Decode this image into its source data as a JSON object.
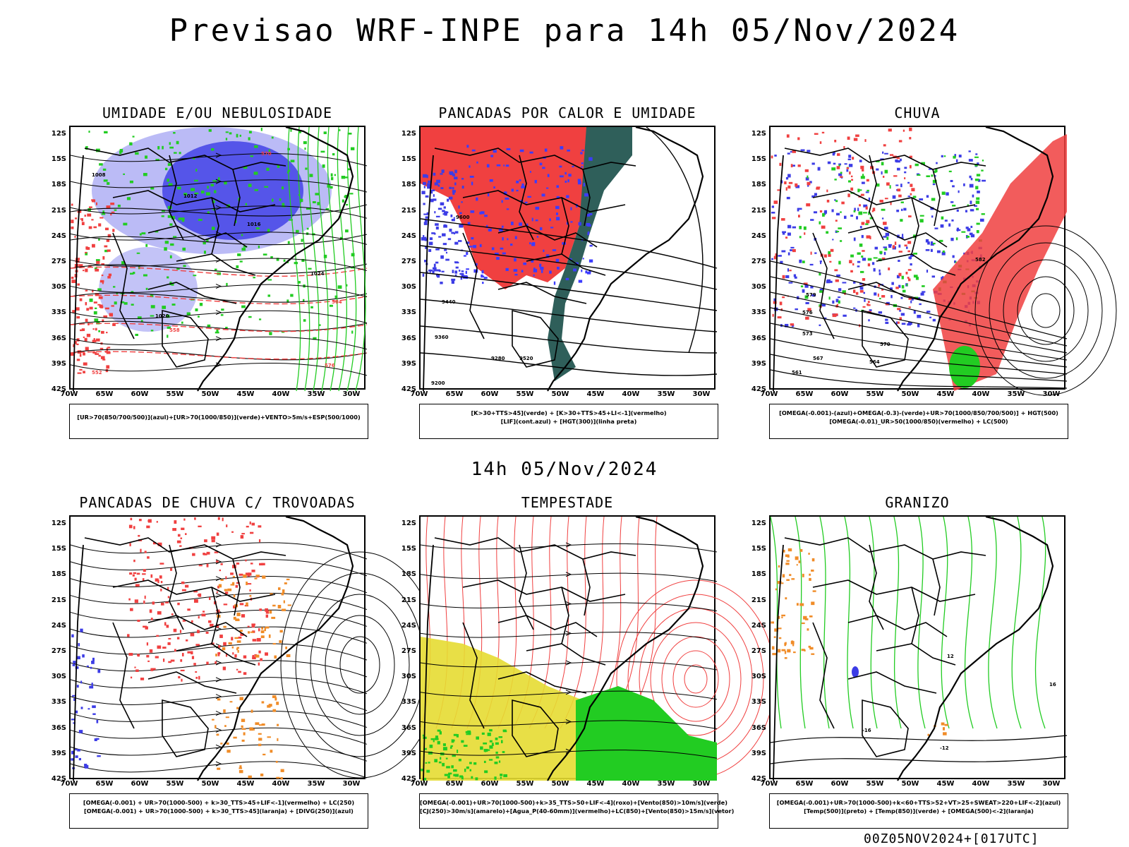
{
  "title": "Previsao WRF-INPE  para 14h 05/Nov/2024",
  "mid_title": "14h 05/Nov/2024",
  "footer": "00Z05NOV2024+[017UTC]",
  "lat_ticks": [
    "12S",
    "15S",
    "18S",
    "21S",
    "24S",
    "27S",
    "30S",
    "33S",
    "36S",
    "39S",
    "42S"
  ],
  "lon_ticks": [
    "70W",
    "65W",
    "60W",
    "55W",
    "50W",
    "45W",
    "40W",
    "35W",
    "30W"
  ],
  "colors": {
    "lightblue": "#b4b4f5",
    "blue": "#3c3ce6",
    "green": "#22cc22",
    "red": "#f04040",
    "darkteal": "#2f5f5a",
    "yellow": "#e6dc32",
    "orange": "#f08c28"
  },
  "panels": [
    {
      "title": "UMIDADE E/OU NEBULOSIDADE",
      "legend": [
        "[UR>70(850/700/500)](azul)+[UR>70(1000/850)](verde)+VENTO>5m/s+ESP(500/1000)"
      ],
      "contour_labels": [
        "1008",
        "1012",
        "1016",
        "1020",
        "1024",
        "576",
        "570",
        "564",
        "558",
        "552"
      ]
    },
    {
      "title": "PANCADAS POR CALOR E UMIDADE",
      "legend": [
        "[K>30+TTS>45](verde)  +  [K>30+TTS>45+LI<-1](vermelho)",
        "[LIF](cont.azul)  +  [HGT(300)](linha preta)"
      ],
      "contour_labels": [
        "9600",
        "9520",
        "9440",
        "9360",
        "9280",
        "9200"
      ]
    },
    {
      "title": "CHUVA",
      "legend": [
        "[OMEGA(-0.001)-(azul)+OMEGA(-0.3)-(verde)+UR>70(1000/850/700/500)]  +  HGT(500)",
        "[OMEGA(-0.01)_UR>50(1000/850)(vermelho)  +  LC(500)"
      ],
      "contour_labels": [
        "582",
        "579",
        "576",
        "573",
        "570",
        "567",
        "564",
        "561"
      ]
    },
    {
      "title": "PANCADAS DE CHUVA C/ TROVOADAS",
      "legend": [
        "[OMEGA(-0.001)  +  UR>70(1000-500)  +  k>30_TTS>45+LIF<-1](vermelho)  +  LC(250)",
        "[OMEGA(-0.001)  +  UR>70(1000-500)  +  k>30_TTS>45](laranja)  +  [DIVG(250)](azul)"
      ],
      "contour_labels": []
    },
    {
      "title": "TEMPESTADE",
      "legend": [
        "[OMEGA(-0.001)+UR>70(1000-500)+k>35_TTS>50+LIF<-4](roxo)+[Vento(850)>10m/s](verde)",
        "[CJ(250)>30m/s](amarelo)+[Agua_P(40-60mm)](vermelho)+LC(850)+[Vento(850)>15m/s](vetor)"
      ],
      "contour_labels": []
    },
    {
      "title": "GRANIZO",
      "legend": [
        "[OMEGA(-0.001)+UR>70(1000-500)+k<60+TTS>52+VT>25+SWEAT>220+LIF<-2](azul)",
        "[Temp(500)](preto)  +  [Temp(850)](verde)  +  [OMEGA(500)<-2](laranja)"
      ],
      "contour_labels": [
        "-16",
        "-12",
        "12",
        "16"
      ]
    }
  ]
}
